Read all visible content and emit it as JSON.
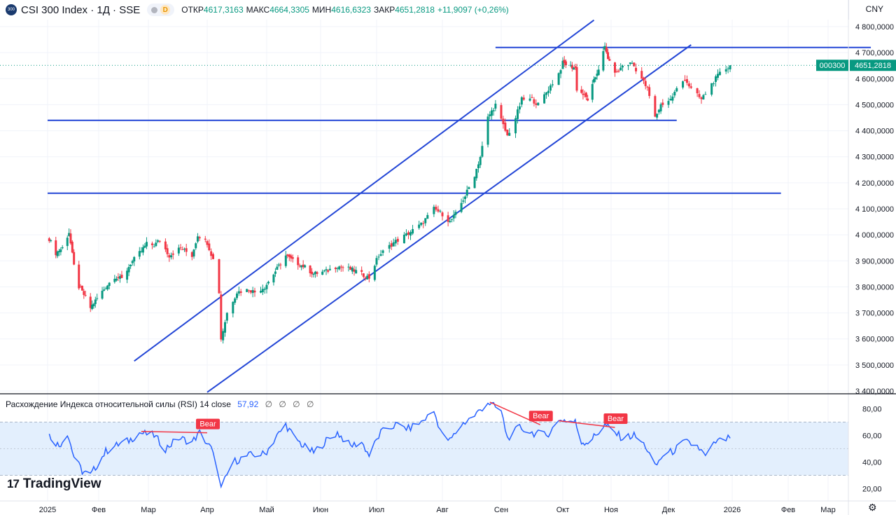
{
  "header": {
    "symbol_logo_text": "300",
    "title": "CSI 300 Index · 1Д · SSE",
    "d_badge": "D",
    "ohlc": [
      {
        "label": "ОТКР",
        "value": "4617,3163"
      },
      {
        "label": "МАКС",
        "value": "4664,3305"
      },
      {
        "label": "МИН",
        "value": "4616,6323"
      },
      {
        "label": "ЗАКР",
        "value": "4651,2818"
      }
    ],
    "change": "+11,9097 (+0,26%)",
    "currency": "CNY"
  },
  "price_tags": {
    "symbol": "000300",
    "last": "4651,2818"
  },
  "rsi_header": {
    "label": "Расхождение Индекса относительной силы (RSI)",
    "params": "14 close",
    "value": "57,92",
    "empties": "∅ ∅ ∅ ∅"
  },
  "branding": {
    "logo_text": "TradingView"
  },
  "colors": {
    "up": "#089981",
    "down": "#f23645",
    "drawings": "#2346d6",
    "rsi": "#2962ff",
    "bear": "#f23645",
    "rsi_band": "#e3effd"
  },
  "chart_data": [
    {
      "type": "candlestick",
      "title": "CSI 300 Index · 1Д · SSE",
      "y_ticks": [
        "4 800,0000",
        "4 700,0000",
        "4 600,0000",
        "4 500,0000",
        "4 400,0000",
        "4 300,0000",
        "4 200,0000",
        "4 100,0000",
        "4 000,0000",
        "3 900,0000",
        "3 800,0000",
        "3 700,0000",
        "3 600,0000",
        "3 500,0000",
        "3 400,0000"
      ],
      "ylim": [
        3400,
        4800
      ],
      "x_ticks": [
        "2025",
        "Фев",
        "Мар",
        "Апр",
        "Май",
        "Июн",
        "Июл",
        "Авг",
        "Сен",
        "Окт",
        "Ноя",
        "Дек",
        "2026",
        "Фев",
        "Мар"
      ],
      "x_domain": [
        "2025-01-01",
        "2026-03-31"
      ],
      "anchor_closes": [
        [
          "2025-01-02",
          3985
        ],
        [
          "2025-01-06",
          3930
        ],
        [
          "2025-01-10",
          3950
        ],
        [
          "2025-01-14",
          4010
        ],
        [
          "2025-01-17",
          3880
        ],
        [
          "2025-01-20",
          3800
        ],
        [
          "2025-01-24",
          3760
        ],
        [
          "2025-01-27",
          3720
        ],
        [
          "2025-02-05",
          3800
        ],
        [
          "2025-02-10",
          3840
        ],
        [
          "2025-02-14",
          3830
        ],
        [
          "2025-02-19",
          3890
        ],
        [
          "2025-02-24",
          3930
        ],
        [
          "2025-02-28",
          3965
        ],
        [
          "2025-03-04",
          3960
        ],
        [
          "2025-03-07",
          3980
        ],
        [
          "2025-03-12",
          3920
        ],
        [
          "2025-03-18",
          3950
        ],
        [
          "2025-03-24",
          3920
        ],
        [
          "2025-03-27",
          4000
        ],
        [
          "2025-04-01",
          3970
        ],
        [
          "2025-04-04",
          3905
        ],
        [
          "2025-04-07",
          3780
        ],
        [
          "2025-04-08",
          3600
        ],
        [
          "2025-04-11",
          3700
        ],
        [
          "2025-04-16",
          3780
        ],
        [
          "2025-04-22",
          3790
        ],
        [
          "2025-04-25",
          3780
        ],
        [
          "2025-04-30",
          3800
        ],
        [
          "2025-05-07",
          3870
        ],
        [
          "2025-05-12",
          3920
        ],
        [
          "2025-05-16",
          3900
        ],
        [
          "2025-05-22",
          3880
        ],
        [
          "2025-05-28",
          3850
        ],
        [
          "2025-06-04",
          3860
        ],
        [
          "2025-06-10",
          3880
        ],
        [
          "2025-06-16",
          3870
        ],
        [
          "2025-06-20",
          3860
        ],
        [
          "2025-06-27",
          3835
        ],
        [
          "2025-07-02",
          3920
        ],
        [
          "2025-07-09",
          3970
        ],
        [
          "2025-07-15",
          4000
        ],
        [
          "2025-07-22",
          4040
        ],
        [
          "2025-07-28",
          4100
        ],
        [
          "2025-08-01",
          4080
        ],
        [
          "2025-08-05",
          4050
        ],
        [
          "2025-08-08",
          4080
        ],
        [
          "2025-08-13",
          4150
        ],
        [
          "2025-08-18",
          4230
        ],
        [
          "2025-08-21",
          4300
        ],
        [
          "2025-08-25",
          4450
        ],
        [
          "2025-08-29",
          4500
        ],
        [
          "2025-09-02",
          4420
        ],
        [
          "2025-09-04",
          4380
        ],
        [
          "2025-09-08",
          4450
        ],
        [
          "2025-09-11",
          4520
        ],
        [
          "2025-09-16",
          4520
        ],
        [
          "2025-09-19",
          4500
        ],
        [
          "2025-09-24",
          4560
        ],
        [
          "2025-09-29",
          4620
        ],
        [
          "2025-10-01",
          4660
        ],
        [
          "2025-10-09",
          4640
        ],
        [
          "2025-10-10",
          4560
        ],
        [
          "2025-10-14",
          4540
        ],
        [
          "2025-10-17",
          4520
        ],
        [
          "2025-10-21",
          4590
        ],
        [
          "2025-10-24",
          4640
        ],
        [
          "2025-10-28",
          4720
        ],
        [
          "2025-10-31",
          4660
        ],
        [
          "2025-11-04",
          4620
        ],
        [
          "2025-11-07",
          4650
        ],
        [
          "2025-11-12",
          4660
        ],
        [
          "2025-11-17",
          4600
        ],
        [
          "2025-11-20",
          4560
        ],
        [
          "2025-11-24",
          4450
        ],
        [
          "2025-11-27",
          4500
        ],
        [
          "2025-12-02",
          4520
        ],
        [
          "2025-12-05",
          4560
        ],
        [
          "2025-12-09",
          4600
        ],
        [
          "2025-12-12",
          4560
        ],
        [
          "2025-12-17",
          4520
        ],
        [
          "2025-12-22",
          4580
        ],
        [
          "2025-12-26",
          4620
        ],
        [
          "2025-12-31",
          4651.2818
        ]
      ],
      "last_close": 4651.2818
    },
    {
      "type": "line",
      "series": [
        {
          "name": "RSI",
          "values_note_skip": null
        }
      ],
      "y_ticks": [
        "80,00",
        "60,00",
        "40,00",
        "20,00"
      ],
      "ylim": [
        16,
        86
      ],
      "band": [
        30,
        70
      ],
      "anchors": [
        [
          "2025-01-02",
          60
        ],
        [
          "2025-01-08",
          52
        ],
        [
          "2025-01-13",
          62
        ],
        [
          "2025-01-17",
          44
        ],
        [
          "2025-01-22",
          33
        ],
        [
          "2025-01-27",
          30
        ],
        [
          "2025-02-05",
          48
        ],
        [
          "2025-02-10",
          52
        ],
        [
          "2025-02-18",
          56
        ],
        [
          "2025-02-24",
          62
        ],
        [
          "2025-03-04",
          60
        ],
        [
          "2025-03-10",
          50
        ],
        [
          "2025-03-17",
          58
        ],
        [
          "2025-03-24",
          55
        ],
        [
          "2025-03-28",
          62
        ],
        [
          "2025-04-03",
          50
        ],
        [
          "2025-04-07",
          30
        ],
        [
          "2025-04-08",
          20
        ],
        [
          "2025-04-14",
          40
        ],
        [
          "2025-04-22",
          45
        ],
        [
          "2025-04-30",
          46
        ],
        [
          "2025-05-06",
          58
        ],
        [
          "2025-05-12",
          68
        ],
        [
          "2025-05-16",
          60
        ],
        [
          "2025-05-22",
          52
        ],
        [
          "2025-05-28",
          47
        ],
        [
          "2025-06-04",
          56
        ],
        [
          "2025-06-10",
          62
        ],
        [
          "2025-06-17",
          52
        ],
        [
          "2025-06-23",
          55
        ],
        [
          "2025-06-27",
          45
        ],
        [
          "2025-07-03",
          62
        ],
        [
          "2025-07-10",
          68
        ],
        [
          "2025-07-16",
          65
        ],
        [
          "2025-07-22",
          70
        ],
        [
          "2025-07-28",
          78
        ],
        [
          "2025-08-01",
          60
        ],
        [
          "2025-08-05",
          56
        ],
        [
          "2025-08-11",
          68
        ],
        [
          "2025-08-18",
          75
        ],
        [
          "2025-08-25",
          85
        ],
        [
          "2025-09-01",
          78
        ],
        [
          "2025-09-04",
          58
        ],
        [
          "2025-09-10",
          66
        ],
        [
          "2025-09-16",
          62
        ],
        [
          "2025-09-23",
          60
        ],
        [
          "2025-09-30",
          72
        ],
        [
          "2025-10-09",
          70
        ],
        [
          "2025-10-13",
          55
        ],
        [
          "2025-10-17",
          55
        ],
        [
          "2025-10-22",
          60
        ],
        [
          "2025-10-28",
          68
        ],
        [
          "2025-11-03",
          62
        ],
        [
          "2025-11-07",
          58
        ],
        [
          "2025-11-13",
          60
        ],
        [
          "2025-11-19",
          52
        ],
        [
          "2025-11-24",
          36
        ],
        [
          "2025-11-28",
          45
        ],
        [
          "2025-12-03",
          48
        ],
        [
          "2025-12-09",
          55
        ],
        [
          "2025-12-15",
          52
        ],
        [
          "2025-12-19",
          44
        ],
        [
          "2025-12-24",
          55
        ],
        [
          "2025-12-31",
          57.92
        ]
      ],
      "last_value": 57.92
    }
  ],
  "drawings": {
    "horizontal_levels": [
      {
        "price": 4440,
        "from": "2025-01-01",
        "to": "2025-12-05"
      },
      {
        "price": 4160,
        "from": "2025-01-01",
        "to": "2026-01-28"
      },
      {
        "price": 4720,
        "from": "2025-08-29",
        "to": "2026-03-31"
      }
    ],
    "channel_lines": [
      {
        "from": [
          "2025-02-21",
          3515
        ],
        "to": [
          "2025-10-21",
          4825
        ]
      },
      {
        "from": [
          "2025-04-01",
          3395
        ],
        "to": [
          "2025-12-12",
          4730
        ]
      }
    ],
    "rsi_divergences": [
      {
        "label": "Bear",
        "from": [
          "2025-02-25",
          63
        ],
        "to": [
          "2025-04-01",
          62
        ]
      },
      {
        "label": "Bear",
        "from": [
          "2025-08-26",
          85
        ],
        "to": [
          "2025-09-20",
          68
        ]
      },
      {
        "label": "Bear",
        "from": [
          "2025-09-29",
          71
        ],
        "to": [
          "2025-11-03",
          66
        ]
      }
    ]
  }
}
